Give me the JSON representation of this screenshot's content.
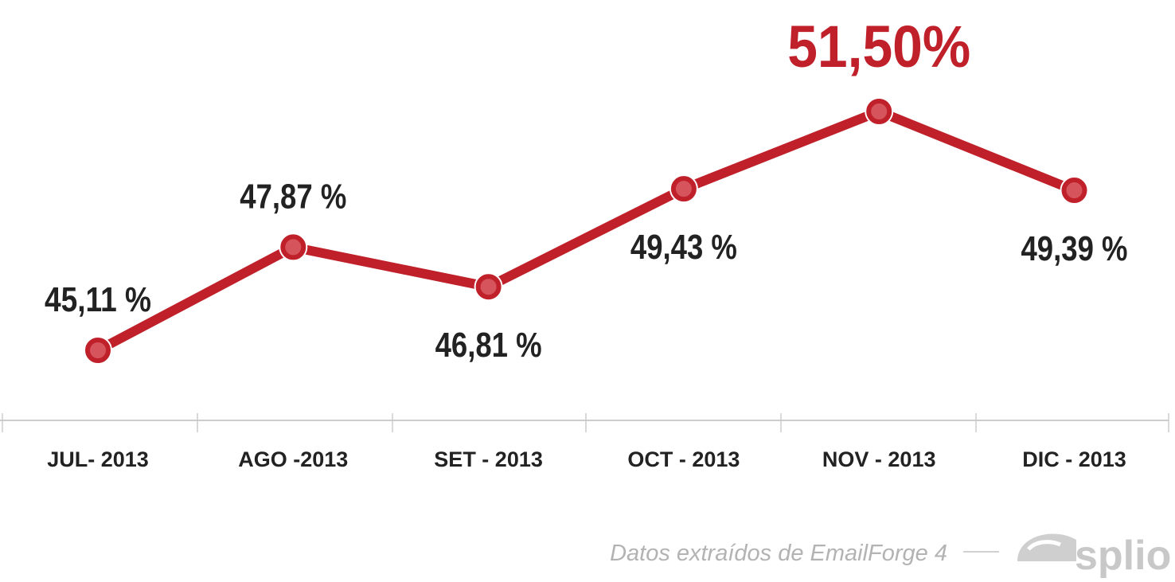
{
  "chart_data": {
    "type": "line",
    "categories": [
      "JUL- 2013",
      "AGO -2013",
      "SET - 2013",
      "OCT - 2013",
      "NOV - 2013",
      "DIC - 2013"
    ],
    "values": [
      45.11,
      47.87,
      46.81,
      49.43,
      51.5,
      49.39
    ],
    "value_labels": [
      "45,11 %",
      "47,87 %",
      "46,81 %",
      "49,43 %",
      "51,50%",
      "49,39 %"
    ],
    "highlight_index": 4,
    "title": "",
    "xlabel": "",
    "ylabel": "",
    "grid": false,
    "legend": "none",
    "colors": {
      "line": "#c0202a",
      "marker_fill": "#d6555d",
      "marker_stroke": "#c0202a",
      "highlight_label": "#c0202a",
      "label": "#222222",
      "axis": "#cccccc"
    }
  },
  "footer": {
    "source": "Datos extraídos de EmailForge 4",
    "logo": "splio",
    "logo_icon": "splio-logo-icon"
  }
}
